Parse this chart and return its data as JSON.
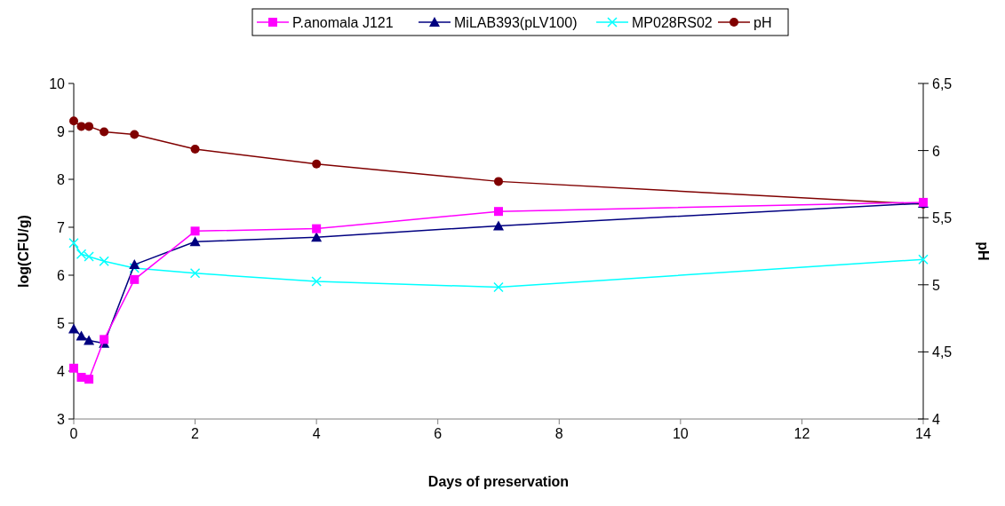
{
  "chart_data": {
    "type": "line",
    "xlabel": "Days of preservation",
    "ylabel": "log(CFU/g)",
    "y2label": "pH",
    "x": [
      0,
      0.125,
      0.25,
      0.5,
      1,
      2,
      4,
      7,
      14
    ],
    "xlim": [
      0,
      14
    ],
    "xticks": [
      0,
      2,
      4,
      6,
      8,
      10,
      12,
      14
    ],
    "ylim": [
      3,
      10
    ],
    "yticks": [
      3,
      4,
      5,
      6,
      7,
      8,
      9,
      10
    ],
    "y2lim": [
      4,
      6.5
    ],
    "y2ticks": [
      {
        "value": 4,
        "label": "4"
      },
      {
        "value": 4.5,
        "label": "4,5"
      },
      {
        "value": 5,
        "label": "5"
      },
      {
        "value": 5.5,
        "label": "5,5"
      },
      {
        "value": 6,
        "label": "6"
      },
      {
        "value": 6.5,
        "label": "6,5"
      }
    ],
    "grid": false,
    "legend": "top",
    "series": [
      {
        "name": "P.anomala J121",
        "color": "#ff00ff",
        "marker": "square",
        "values": [
          4.06,
          3.87,
          3.83,
          4.66,
          5.91,
          6.92,
          6.97,
          7.33,
          7.52
        ]
      },
      {
        "name": "MiLAB393(pLV100)",
        "color": "#000080",
        "marker": "triangle",
        "values": [
          4.88,
          4.73,
          4.64,
          4.58,
          6.22,
          6.7,
          6.79,
          7.03,
          7.5
        ]
      },
      {
        "name": "MP028RS02",
        "color": "#00ffff",
        "marker": "cross",
        "values": [
          6.67,
          6.44,
          6.39,
          6.29,
          6.15,
          6.04,
          5.87,
          5.75,
          6.33
        ]
      },
      {
        "name": "pH",
        "color": "#800000",
        "marker": "circle",
        "axis": "y2",
        "values": [
          6.22,
          6.18,
          6.18,
          6.14,
          6.12,
          6.01,
          5.9,
          5.77,
          5.6
        ]
      }
    ]
  }
}
